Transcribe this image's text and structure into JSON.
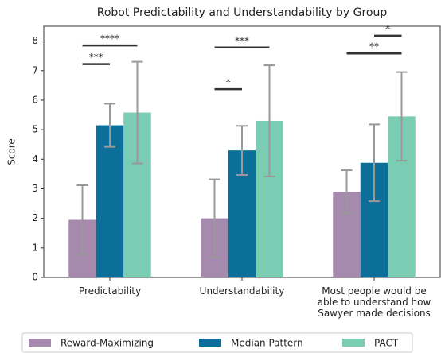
{
  "chart_data": {
    "type": "bar",
    "title": "Robot Predictability and Understandability by Group",
    "ylabel": "Score",
    "categories": [
      "Predictability",
      "Understandability",
      "Most people would be\nable to understand how\nSawyer made decisions"
    ],
    "series": [
      {
        "name": "Reward-Maximizing",
        "color": "#a68aad",
        "values": [
          1.95,
          2.0,
          2.9
        ],
        "errors": [
          1.17,
          1.32,
          0.73
        ]
      },
      {
        "name": "Median Pattern",
        "color": "#0b6f99",
        "values": [
          5.15,
          4.3,
          3.88
        ],
        "errors": [
          0.73,
          0.83,
          1.3
        ]
      },
      {
        "name": "PACT",
        "color": "#7accb2",
        "values": [
          5.58,
          5.3,
          5.45
        ],
        "errors": [
          1.72,
          1.88,
          1.5
        ]
      }
    ],
    "error_color": "#999999",
    "ylim": [
      0,
      8.5
    ],
    "yticks": [
      0,
      1,
      2,
      3,
      4,
      5,
      6,
      7,
      8
    ],
    "annotations": [
      {
        "label": "***",
        "category": 0,
        "from": 0,
        "to": 1,
        "y": 7.22
      },
      {
        "label": "****",
        "category": 0,
        "from": 0,
        "to": 2,
        "y": 7.85
      },
      {
        "label": "*",
        "category": 1,
        "from": 0,
        "to": 1,
        "y": 6.37
      },
      {
        "label": "***",
        "category": 1,
        "from": 0,
        "to": 2,
        "y": 7.78
      },
      {
        "label": "**",
        "category": 2,
        "from": 0,
        "to": 2,
        "y": 7.58
      },
      {
        "label": "*",
        "category": 2,
        "from": 1,
        "to": 2,
        "y": 8.18
      }
    ],
    "legend": "bottom"
  }
}
